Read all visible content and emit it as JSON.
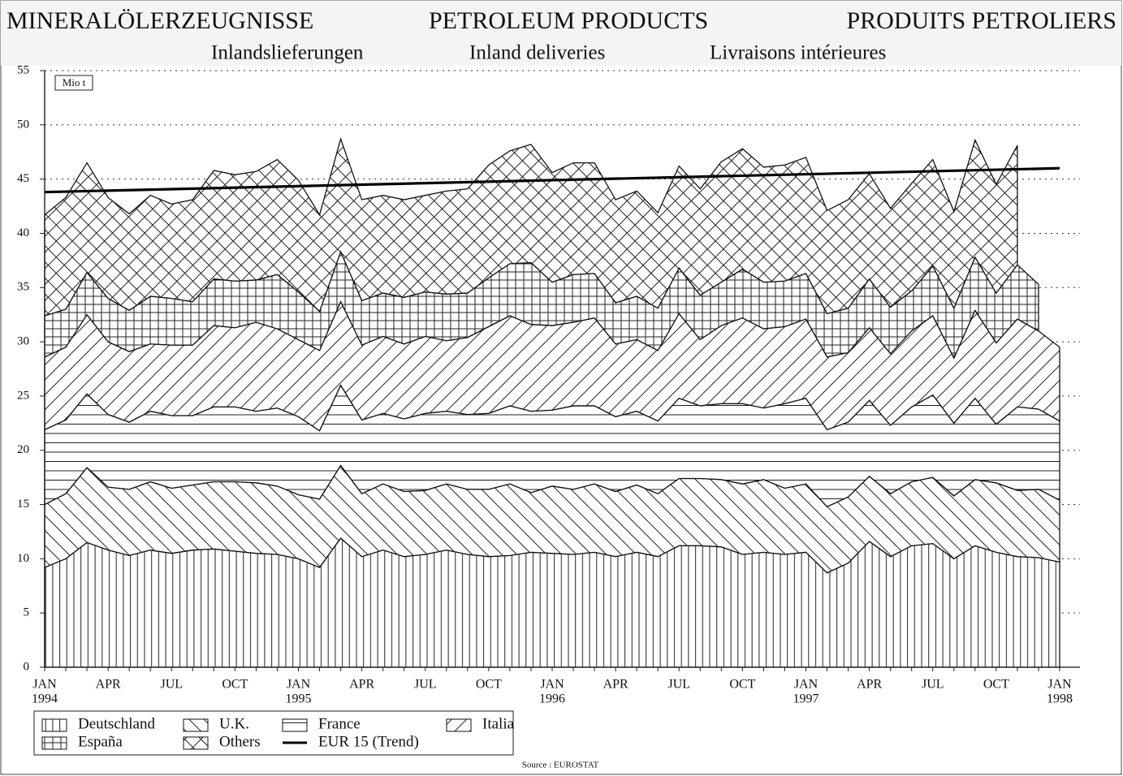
{
  "chart_data": {
    "type": "stacked_area",
    "titles": [
      "MINERALÖLERZEUGNISSE",
      "PETROLEUM PRODUCTS",
      "PRODUITS PETROLIERS"
    ],
    "subtitles": [
      "Inlandslieferungen",
      "Inland deliveries",
      "Livraisons intérieures"
    ],
    "unit": "Mio t",
    "source": "Source : EUROSTAT",
    "categories": [
      "JAN",
      null,
      null,
      "APR",
      null,
      null,
      "JUL",
      null,
      null,
      "OCT",
      null,
      null,
      "JAN",
      null,
      null,
      "APR",
      null,
      null,
      "JUL",
      null,
      null,
      "OCT",
      null,
      null,
      "JAN",
      null,
      null,
      "APR",
      null,
      null,
      "JUL",
      null,
      null,
      "OCT",
      null,
      null,
      "JAN",
      null,
      null,
      "APR",
      null,
      null,
      "JUL",
      null,
      null,
      "OCT",
      null,
      null,
      "JAN"
    ],
    "years": [
      "1994",
      null,
      null,
      null,
      null,
      null,
      null,
      null,
      null,
      null,
      null,
      null,
      "1995",
      null,
      null,
      null,
      null,
      null,
      null,
      null,
      null,
      null,
      null,
      null,
      "1996",
      null,
      null,
      null,
      null,
      null,
      null,
      null,
      null,
      null,
      null,
      null,
      "1997",
      null,
      null,
      null,
      null,
      null,
      null,
      null,
      null,
      null,
      null,
      null,
      "1998"
    ],
    "series": [
      {
        "name": "Deutschland",
        "pattern": "vertical",
        "values": [
          9.2,
          10.0,
          11.5,
          10.8,
          10.3,
          10.8,
          10.5,
          10.8,
          10.9,
          10.7,
          10.5,
          10.4,
          10.0,
          9.2,
          11.9,
          10.2,
          10.8,
          10.2,
          10.4,
          10.8,
          10.4,
          10.2,
          10.3,
          10.6,
          10.5,
          10.4,
          10.6,
          10.2,
          10.6,
          10.2,
          11.2,
          11.2,
          11.1,
          10.4,
          10.6,
          10.4,
          10.6,
          8.7,
          9.6,
          11.6,
          10.2,
          11.2,
          11.4,
          10.0,
          11.2,
          10.6,
          10.2,
          10.1,
          9.7
        ]
      },
      {
        "name": "U.K.",
        "pattern": "backslash",
        "values": [
          5.8,
          6.0,
          6.9,
          5.8,
          6.1,
          6.3,
          6.0,
          6.0,
          6.2,
          6.4,
          6.5,
          6.3,
          5.9,
          6.3,
          6.7,
          5.8,
          6.1,
          6.0,
          5.9,
          6.1,
          6.0,
          6.2,
          6.6,
          5.5,
          6.2,
          6.0,
          6.3,
          6.0,
          6.2,
          5.8,
          6.2,
          6.2,
          6.2,
          6.5,
          6.7,
          6.1,
          6.3,
          6.1,
          6.1,
          6.0,
          5.8,
          5.9,
          6.1,
          5.8,
          6.1,
          6.4,
          6.1,
          6.3,
          5.7
        ]
      },
      {
        "name": "France",
        "pattern": "horizontal",
        "values": [
          6.9,
          6.8,
          6.8,
          6.7,
          6.2,
          6.5,
          6.7,
          6.4,
          6.9,
          6.9,
          6.6,
          7.2,
          7.2,
          6.3,
          7.4,
          6.8,
          6.5,
          6.7,
          7.1,
          6.7,
          6.9,
          7.0,
          7.2,
          7.5,
          7.0,
          7.7,
          7.2,
          6.9,
          6.8,
          6.7,
          7.4,
          6.7,
          7.0,
          7.4,
          6.6,
          7.8,
          7.9,
          7.1,
          6.9,
          7.0,
          6.3,
          6.9,
          7.6,
          6.7,
          7.5,
          5.4,
          7.7,
          7.4,
          7.3
        ]
      },
      {
        "name": "Italia",
        "pattern": "slash",
        "values": [
          6.7,
          6.7,
          7.3,
          6.7,
          6.5,
          6.2,
          6.5,
          6.5,
          7.5,
          7.3,
          8.2,
          7.3,
          7.1,
          7.4,
          7.7,
          6.9,
          7.1,
          6.9,
          7.1,
          6.5,
          7.1,
          8.0,
          8.3,
          8.0,
          7.8,
          7.7,
          8.1,
          6.7,
          6.6,
          6.5,
          7.8,
          6.1,
          7.2,
          7.9,
          7.3,
          7.1,
          7.3,
          6.7,
          6.4,
          6.7,
          6.6,
          7.0,
          7.3,
          6.0,
          8.1,
          7.5,
          8.1,
          7.2,
          6.8
        ]
      },
      {
        "name": "España",
        "pattern": "grid",
        "values": [
          3.8,
          3.5,
          3.9,
          4.0,
          3.8,
          4.4,
          4.3,
          4.0,
          4.3,
          4.3,
          3.9,
          5.0,
          4.4,
          3.6,
          4.6,
          4.1,
          4.0,
          4.3,
          4.1,
          4.3,
          4.1,
          4.5,
          4.8,
          5.7,
          4.0,
          4.4,
          4.1,
          3.8,
          4.0,
          3.9,
          4.2,
          4.1,
          4.0,
          4.5,
          4.3,
          4.2,
          4.2,
          4.0,
          4.1,
          4.5,
          4.3,
          3.7,
          4.6,
          4.6,
          4.9,
          4.6,
          5.0,
          4.3,
          null
        ]
      },
      {
        "name": "Others",
        "pattern": "crosshatch",
        "values": [
          9.3,
          10.3,
          10.1,
          9.3,
          8.9,
          9.3,
          8.7,
          9.4,
          10.0,
          9.8,
          10.0,
          10.6,
          10.3,
          8.9,
          10.4,
          9.3,
          9.0,
          9.0,
          8.9,
          9.5,
          9.6,
          10.4,
          10.4,
          10.9,
          10.1,
          10.3,
          10.2,
          9.5,
          9.7,
          8.8,
          9.4,
          9.8,
          11.1,
          11.1,
          10.6,
          10.7,
          10.7,
          9.5,
          10.0,
          9.7,
          9.1,
          9.9,
          9.8,
          8.9,
          10.8,
          10.0,
          11.0,
          null,
          null
        ]
      }
    ],
    "trend": {
      "name": "EUR 15 (Trend)",
      "color": "#000000",
      "values": [
        43.8,
        46.0
      ]
    },
    "ylim": [
      0,
      55
    ],
    "yticks": [
      0,
      5,
      10,
      15,
      20,
      25,
      30,
      35,
      40,
      45,
      50,
      55
    ],
    "grid": true
  }
}
